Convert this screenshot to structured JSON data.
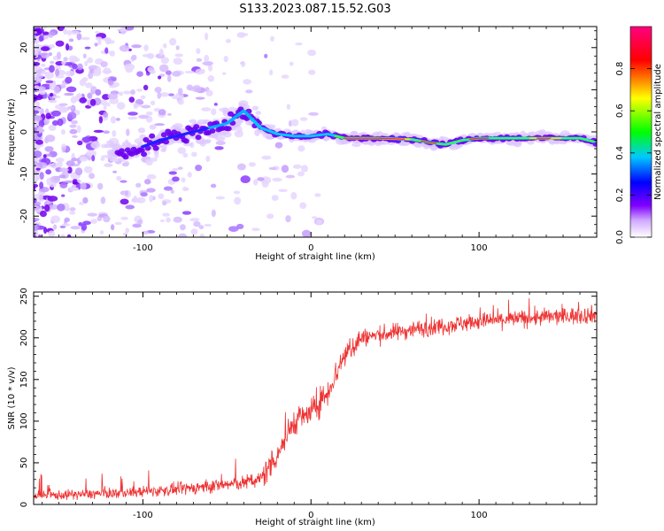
{
  "title": "S133.2023.087.15.52.G03",
  "chart_data": [
    {
      "type": "heatmap",
      "xlabel": "Height of straight line (km)",
      "ylabel": "Frequency (Hz)",
      "xlim": [
        -165,
        170
      ],
      "ylim": [
        -25,
        25
      ],
      "xticks": [
        -100,
        0,
        100
      ],
      "xtick_labels": [
        "-100",
        "0",
        "100"
      ],
      "yticks": [
        -20,
        -10,
        0,
        10,
        20
      ],
      "ytick_labels": [
        "-20",
        "-10",
        "0",
        "10",
        "20"
      ],
      "ridge": {
        "x": [
          -110,
          -90,
          -70,
          -50,
          -40,
          -35,
          -30,
          -20,
          -10,
          0,
          10,
          20,
          40,
          60,
          70,
          80,
          90,
          100,
          120,
          140,
          160,
          170
        ],
        "y": [
          -5,
          -2,
          0,
          2,
          5,
          3,
          1,
          -0.5,
          -1,
          -1,
          -0.5,
          -1.5,
          -1.5,
          -1.8,
          -2.5,
          -3,
          -2,
          -1.5,
          -1.5,
          -1.5,
          -1.5,
          -2.5
        ]
      },
      "colorbar": {
        "label": "Normalized spectral amplitude",
        "range": [
          0,
          1
        ],
        "ticks": [
          0.0,
          0.2,
          0.4,
          0.6,
          0.8
        ],
        "tick_labels": [
          "0.0",
          "0.2",
          "0.4",
          "0.6",
          "0.8"
        ],
        "colors": [
          "#ffffff",
          "#8000ff",
          "#0000ff",
          "#00c8ff",
          "#00ff00",
          "#ffff00",
          "#ff0000",
          "#ff0080"
        ]
      }
    },
    {
      "type": "line",
      "xlabel": "Height of straight line (km)",
      "ylabel": "SNR (10 * v/v)",
      "xlim": [
        -165,
        170
      ],
      "ylim": [
        0,
        255
      ],
      "xticks": [
        -100,
        0,
        100
      ],
      "xtick_labels": [
        "-100",
        "0",
        "100"
      ],
      "yticks": [
        0,
        50,
        100,
        150,
        200,
        250
      ],
      "ytick_labels": [
        "0",
        "50",
        "100",
        "150",
        "200",
        "250"
      ],
      "color": "#ee3333",
      "trend": {
        "x": [
          -165,
          -140,
          -110,
          -80,
          -60,
          -40,
          -30,
          -20,
          -10,
          0,
          10,
          20,
          30,
          60,
          100,
          140,
          170
        ],
        "y": [
          10,
          12,
          14,
          18,
          22,
          26,
          30,
          60,
          100,
          110,
          135,
          180,
          200,
          210,
          220,
          225,
          228
        ]
      }
    }
  ]
}
